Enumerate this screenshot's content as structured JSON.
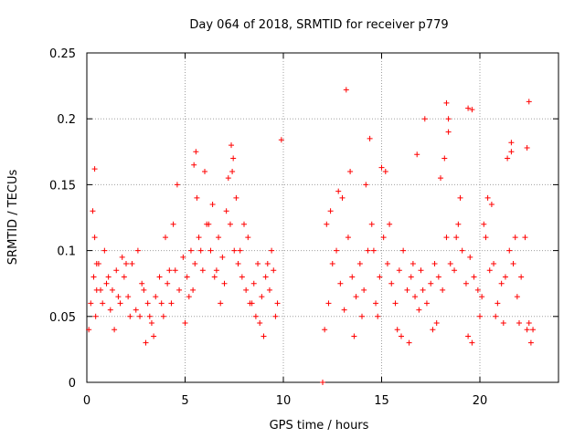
{
  "chart_data": {
    "type": "scatter",
    "title": "Day 064 of 2018, SRMTID for receiver p779",
    "xlabel": "GPS time / hours",
    "ylabel": "SRMTID / TECUs",
    "xlim": [
      0,
      24
    ],
    "ylim": [
      0,
      0.25
    ],
    "x_ticks": [
      "0",
      "5",
      "10",
      "15",
      "20"
    ],
    "y_ticks": [
      "0",
      "0.05",
      "0.1",
      "0.15",
      "0.2",
      "0.25"
    ],
    "grid": true,
    "marker": "+",
    "colors": {
      "series": "#ff0000",
      "grid": "#a0a0a0",
      "axes": "#000000"
    },
    "series": [
      {
        "name": "SRMTID",
        "x": [
          0.1,
          0.2,
          0.35,
          0.45,
          0.5,
          0.6,
          0.8,
          1.0,
          1.2,
          1.3,
          1.5,
          1.7,
          1.9,
          2.1,
          2.3,
          2.5,
          2.7,
          2.9,
          3.1,
          3.3,
          3.5,
          3.7,
          3.9,
          4.1,
          4.3,
          4.5,
          4.7,
          4.9,
          5.1,
          5.3,
          5.5,
          5.7,
          5.9,
          6.1,
          6.3,
          6.5,
          6.7,
          6.9,
          7.1,
          7.3,
          7.5,
          7.7,
          7.9,
          8.1,
          8.3,
          8.5,
          8.7,
          8.9,
          9.1,
          9.3,
          9.5,
          9.7,
          0.4,
          0.9,
          1.4,
          2.0,
          2.6,
          3.2,
          3.8,
          4.4,
          5.0,
          5.6,
          6.2,
          6.8,
          7.4,
          8.0,
          8.6,
          9.2,
          0.3,
          0.7,
          1.1,
          1.6,
          2.2,
          2.8,
          3.4,
          4.0,
          4.6,
          5.2,
          5.8,
          6.4,
          7.0,
          7.6,
          8.2,
          8.8,
          9.4,
          0.5,
          1.8,
          3.0,
          4.2,
          5.4,
          6.0,
          6.6,
          7.2,
          7.8,
          8.4,
          9.0,
          9.6,
          7.35,
          7.45,
          5.55,
          5.45,
          0.4,
          9.9,
          12.0,
          12.0,
          12.1,
          12.3,
          12.5,
          12.7,
          12.9,
          13.1,
          13.3,
          13.5,
          13.7,
          13.9,
          14.1,
          14.3,
          14.5,
          14.7,
          14.9,
          15.1,
          15.3,
          15.5,
          15.7,
          15.9,
          16.1,
          16.3,
          16.5,
          16.7,
          16.9,
          17.1,
          17.3,
          17.5,
          17.7,
          17.9,
          18.1,
          18.3,
          18.5,
          18.7,
          18.9,
          19.1,
          19.3,
          19.5,
          19.7,
          19.9,
          20.1,
          20.3,
          20.5,
          20.7,
          20.9,
          21.1,
          21.3,
          21.5,
          21.7,
          21.9,
          22.1,
          22.3,
          22.5,
          22.7,
          12.4,
          13.0,
          13.6,
          14.2,
          14.8,
          15.4,
          16.0,
          16.6,
          17.2,
          17.8,
          18.4,
          19.0,
          19.6,
          20.2,
          20.8,
          21.4,
          22.0,
          22.6,
          12.2,
          12.8,
          13.4,
          14.0,
          14.6,
          15.2,
          15.8,
          16.4,
          17.0,
          17.6,
          18.2,
          18.8,
          19.4,
          20.0,
          20.6,
          21.2,
          21.8,
          22.4,
          13.2,
          15.0,
          16.8,
          18.3,
          18.4,
          19.4,
          19.6,
          22.5,
          22.4,
          21.6,
          21.6,
          14.4,
          18.0,
          20.4
        ],
        "y": [
          0.04,
          0.06,
          0.08,
          0.05,
          0.07,
          0.09,
          0.06,
          0.075,
          0.055,
          0.07,
          0.085,
          0.06,
          0.08,
          0.065,
          0.09,
          0.055,
          0.05,
          0.07,
          0.06,
          0.045,
          0.065,
          0.08,
          0.05,
          0.075,
          0.06,
          0.085,
          0.07,
          0.095,
          0.08,
          0.1,
          0.09,
          0.11,
          0.085,
          0.12,
          0.1,
          0.08,
          0.11,
          0.095,
          0.13,
          0.12,
          0.1,
          0.09,
          0.08,
          0.07,
          0.06,
          0.075,
          0.09,
          0.065,
          0.08,
          0.07,
          0.085,
          0.06,
          0.11,
          0.1,
          0.04,
          0.09,
          0.1,
          0.05,
          0.06,
          0.12,
          0.045,
          0.14,
          0.12,
          0.06,
          0.16,
          0.12,
          0.05,
          0.09,
          0.13,
          0.07,
          0.08,
          0.065,
          0.05,
          0.075,
          0.035,
          0.11,
          0.15,
          0.065,
          0.1,
          0.135,
          0.075,
          0.14,
          0.11,
          0.045,
          0.1,
          0.09,
          0.095,
          0.03,
          0.085,
          0.07,
          0.16,
          0.085,
          0.155,
          0.1,
          0.06,
          0.035,
          0.05,
          0.18,
          0.17,
          0.175,
          0.165,
          0.162,
          0.184,
          0.0,
          0.0,
          0.04,
          0.06,
          0.09,
          0.1,
          0.075,
          0.055,
          0.11,
          0.08,
          0.065,
          0.09,
          0.07,
          0.1,
          0.12,
          0.06,
          0.08,
          0.11,
          0.09,
          0.075,
          0.06,
          0.085,
          0.1,
          0.07,
          0.08,
          0.065,
          0.055,
          0.07,
          0.06,
          0.075,
          0.09,
          0.08,
          0.07,
          0.11,
          0.09,
          0.085,
          0.12,
          0.1,
          0.075,
          0.095,
          0.08,
          0.07,
          0.065,
          0.11,
          0.085,
          0.09,
          0.06,
          0.075,
          0.08,
          0.1,
          0.09,
          0.065,
          0.08,
          0.11,
          0.045,
          0.04,
          0.13,
          0.14,
          0.035,
          0.15,
          0.05,
          0.12,
          0.035,
          0.09,
          0.2,
          0.045,
          0.19,
          0.14,
          0.03,
          0.12,
          0.05,
          0.17,
          0.045,
          0.03,
          0.12,
          0.145,
          0.16,
          0.05,
          0.1,
          0.16,
          0.04,
          0.03,
          0.085,
          0.04,
          0.17,
          0.11,
          0.035,
          0.05,
          0.135,
          0.045,
          0.11,
          0.04,
          0.222,
          0.163,
          0.173,
          0.212,
          0.2,
          0.208,
          0.207,
          0.213,
          0.178,
          0.182,
          0.175,
          0.185,
          0.155,
          0.14
        ]
      }
    ]
  }
}
